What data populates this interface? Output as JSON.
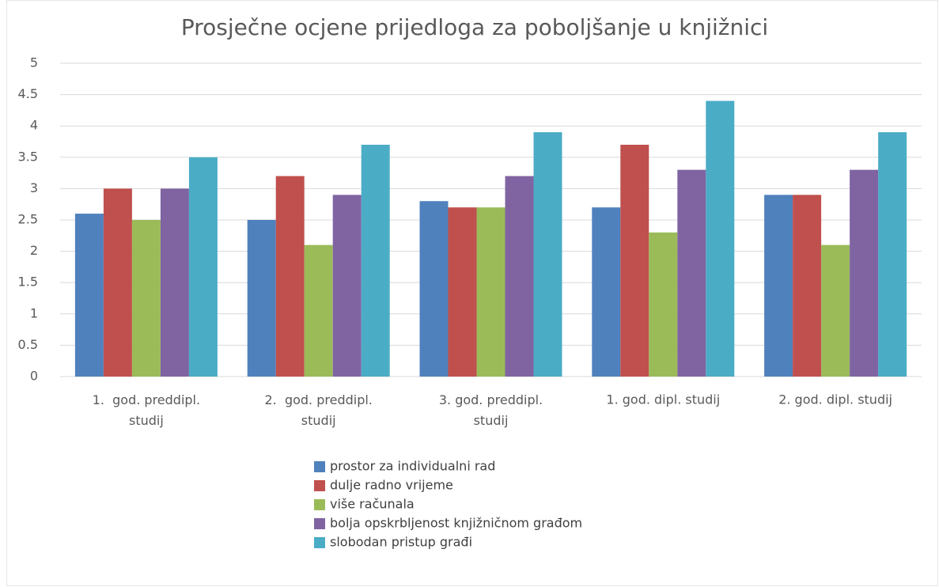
{
  "chart_data": {
    "type": "bar",
    "title": "Prosječne ocjene prijedloga za poboljšanje u knjižnici",
    "categories": [
      "1.  god. preddipl. studij",
      "2.  god. preddipl. studij",
      "3. god. preddipl. studij",
      "1. god. dipl. studij",
      "2. god. dipl. studij"
    ],
    "series": [
      {
        "name": "prostor za individualni rad",
        "color": "#4f81bd",
        "values": [
          2.6,
          2.5,
          2.8,
          2.7,
          2.9
        ]
      },
      {
        "name": "dulje radno vrijeme",
        "color": "#c0504d",
        "values": [
          3.0,
          3.2,
          2.7,
          3.7,
          2.9
        ]
      },
      {
        "name": "više računala",
        "color": "#9bbb59",
        "values": [
          2.5,
          2.1,
          2.7,
          2.3,
          2.1
        ]
      },
      {
        "name": "bolja opskrbljenost knjižničnom građom",
        "color": "#8064a2",
        "values": [
          3.0,
          2.9,
          3.2,
          3.3,
          3.3
        ]
      },
      {
        "name": "slobodan pristup građi",
        "color": "#4bacc6",
        "values": [
          3.5,
          3.7,
          3.9,
          4.4,
          3.9
        ]
      }
    ],
    "ylim": [
      0,
      5
    ],
    "yticks": [
      0,
      0.5,
      1,
      1.5,
      2,
      2.5,
      3,
      3.5,
      4,
      4.5,
      5
    ],
    "grid": true,
    "legend": "bottom"
  }
}
